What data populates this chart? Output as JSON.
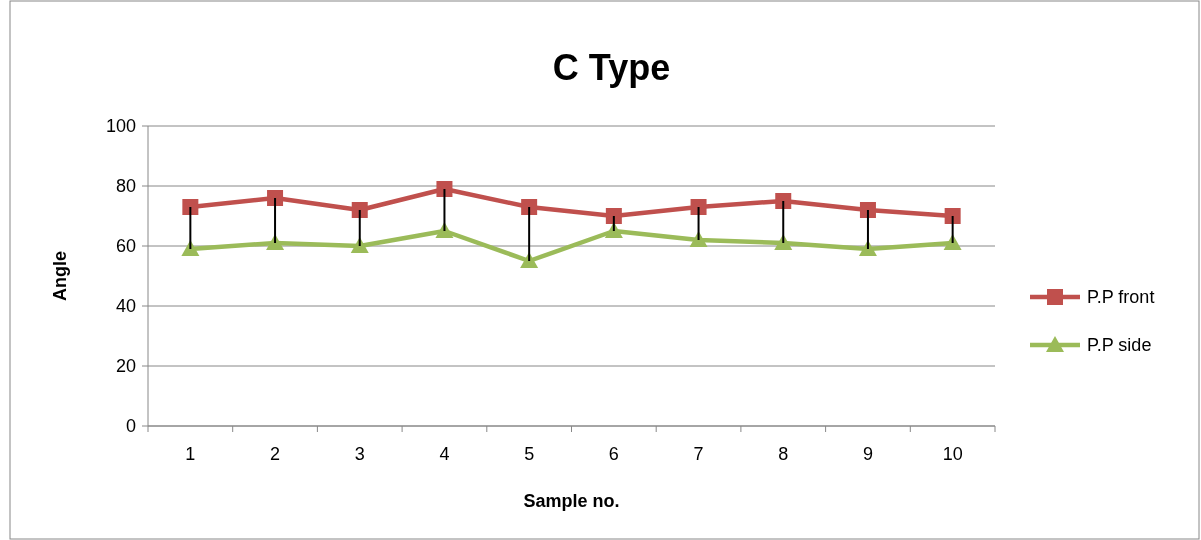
{
  "chart_data": {
    "type": "line",
    "title": "C Type",
    "xlabel": "Sample no.",
    "ylabel": "Angle",
    "categories": [
      "1",
      "2",
      "3",
      "4",
      "5",
      "6",
      "7",
      "8",
      "9",
      "10"
    ],
    "series": [
      {
        "name": "P.P front",
        "color": "#c0504d",
        "marker": "square",
        "values": [
          73,
          76,
          72,
          79,
          73,
          70,
          73,
          75,
          72,
          70
        ],
        "errors": [
          [
            59,
            73
          ],
          [
            61,
            76
          ],
          [
            60,
            72
          ],
          [
            65,
            79
          ],
          [
            55,
            73
          ],
          [
            65,
            70
          ],
          [
            62,
            73
          ],
          [
            61,
            75
          ],
          [
            59,
            72
          ],
          [
            61,
            70
          ]
        ]
      },
      {
        "name": "P.P side",
        "color": "#9bbb59",
        "marker": "triangle",
        "values": [
          59,
          61,
          60,
          65,
          55,
          65,
          62,
          61,
          59,
          61
        ]
      }
    ],
    "ylim": [
      0,
      100
    ],
    "yticks": [
      0,
      20,
      40,
      60,
      80,
      100
    ],
    "grid": "y",
    "legend": "right"
  }
}
